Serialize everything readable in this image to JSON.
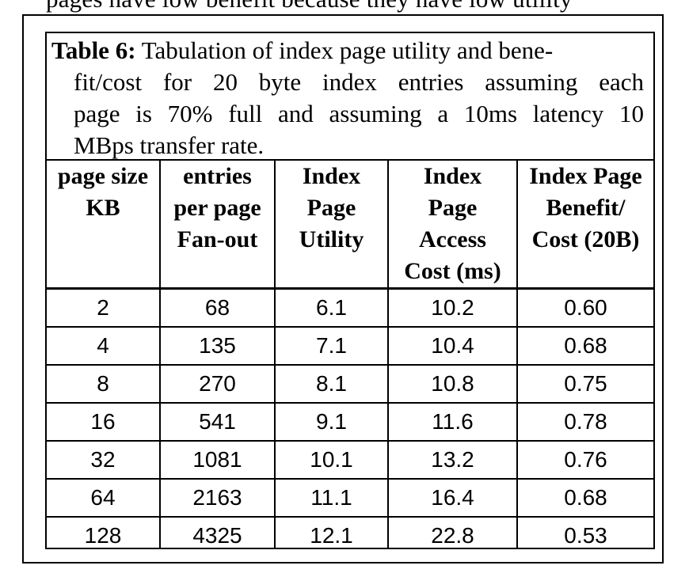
{
  "top_text": "pages have low benefit because they have low utility",
  "caption": {
    "label": "Table 6:",
    "line1": "Tabulation of index page utility and bene-",
    "line2": "fit/cost for 20 byte index entries assuming each",
    "line3": "page is 70% full and assuming a 10ms latency 10",
    "line4": "MBps transfer rate."
  },
  "headers": [
    {
      "l1": "page size",
      "l2": "KB",
      "l3": "",
      "l4": ""
    },
    {
      "l1": "entries",
      "l2": "per page",
      "l3": "Fan-out",
      "l4": ""
    },
    {
      "l1": "Index",
      "l2": "Page",
      "l3": "Utility",
      "l4": ""
    },
    {
      "l1": "Index",
      "l2": "Page",
      "l3": "Access",
      "l4": "Cost (ms)"
    },
    {
      "l1": "Index Page",
      "l2": "Benefit/",
      "l3": "Cost (20B)",
      "l4": ""
    }
  ],
  "rows": [
    [
      "2",
      "68",
      "6.1",
      "10.2",
      "0.60"
    ],
    [
      "4",
      "135",
      "7.1",
      "10.4",
      "0.68"
    ],
    [
      "8",
      "270",
      "8.1",
      "10.8",
      "0.75"
    ],
    [
      "16",
      "541",
      "9.1",
      "11.6",
      "0.78"
    ],
    [
      "32",
      "1081",
      "10.1",
      "13.2",
      "0.76"
    ],
    [
      "64",
      "2163",
      "11.1",
      "16.4",
      "0.68"
    ],
    [
      "128",
      "4325",
      "12.1",
      "22.8",
      "0.53"
    ]
  ]
}
